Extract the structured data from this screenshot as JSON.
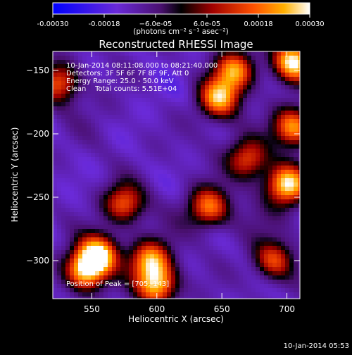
{
  "chart_data": {
    "type": "heatmap",
    "title": "Reconstructed RHESSI Image",
    "xlabel": "Heliocentric X (arcsec)",
    "ylabel": "Heliocentric Y (arcsec)",
    "xlim": [
      520,
      710
    ],
    "ylim": [
      -330,
      -135
    ],
    "x_ticks": [
      550,
      600,
      650,
      700
    ],
    "y_ticks": [
      -150,
      -200,
      -250,
      -300
    ],
    "x_tick_labels": [
      "550",
      "600",
      "650",
      "700"
    ],
    "y_tick_labels": [
      "−150",
      "−200",
      "−250",
      "−300"
    ],
    "colorbar": {
      "range": [
        -0.0003,
        0.0003
      ],
      "tick_values": [
        -0.0003,
        -0.00018,
        -6e-05,
        6e-05,
        0.00018,
        0.0003
      ],
      "tick_labels": [
        "-0.00030",
        "-0.00018",
        "−6.0e-05",
        "6.0e-05",
        "0.00018",
        "0.00030"
      ],
      "units": "(photons cm⁻² s⁻¹ asec⁻²)"
    },
    "annotations": [
      "10-Jan-2014 08:11:08.000 to 08:21:40.000",
      "Detectors: 3F 5F 6F 7F 8F 9F, Att 0",
      "Energy Range: 25.0 - 50.0 keV",
      "Clean    Total counts: 5.51E+04"
    ],
    "peak_label": "Position of Peak = [705,-143]",
    "peak": [
      705,
      -143
    ],
    "emission_regions": [
      {
        "x": 705,
        "y": -143,
        "value": 0.0003
      },
      {
        "x": 700,
        "y": -240,
        "value": 0.00029
      },
      {
        "x": 705,
        "y": -195,
        "value": 0.00022
      },
      {
        "x": 555,
        "y": -295,
        "value": 0.00028
      },
      {
        "x": 545,
        "y": -308,
        "value": 0.00026
      },
      {
        "x": 648,
        "y": -172,
        "value": 0.00024
      },
      {
        "x": 660,
        "y": -150,
        "value": 0.0002
      },
      {
        "x": 595,
        "y": -300,
        "value": 0.00022
      },
      {
        "x": 600,
        "y": -320,
        "value": 0.00024
      },
      {
        "x": 640,
        "y": -258,
        "value": 0.00018
      },
      {
        "x": 575,
        "y": -255,
        "value": 0.00016
      },
      {
        "x": 690,
        "y": -300,
        "value": 0.00014
      },
      {
        "x": 525,
        "y": -160,
        "value": 0.00016
      },
      {
        "x": 670,
        "y": -220,
        "value": 0.00014
      }
    ],
    "negative_regions": [
      {
        "x": 605,
        "y": -170,
        "value": -0.00014
      },
      {
        "x": 580,
        "y": -210,
        "value": -0.00012
      },
      {
        "x": 625,
        "y": -230,
        "value": -0.00012
      },
      {
        "x": 615,
        "y": -270,
        "value": -0.0001
      },
      {
        "x": 645,
        "y": -205,
        "value": -0.0001
      },
      {
        "x": 555,
        "y": -185,
        "value": -0.0001
      },
      {
        "x": 680,
        "y": -265,
        "value": -8e-05
      },
      {
        "x": 615,
        "y": -325,
        "value": -0.00012
      }
    ]
  },
  "footer": {
    "timestamp": "10-Jan-2014 05:53"
  }
}
